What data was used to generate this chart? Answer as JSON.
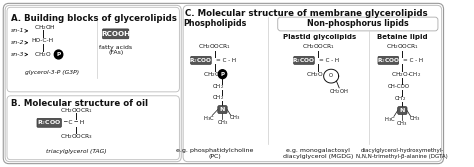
{
  "bg_color": "#ffffff",
  "border_color": "#aaaaaa",
  "title_A": "A. Building blocks of glycerolipids",
  "title_B": "B. Molecular structure of oil",
  "title_C": "C. Molecular structure of membrane glycerolipids",
  "label_phospholipids": "Phospholipids",
  "label_non_phosphorus": "Non-phosphorus lipids",
  "label_plastid": "Plastid glycolipids",
  "label_betaine": "Betaine lipid",
  "caption_PC": "e.g. phosphatidylcholine\n(PC)",
  "caption_MGDG": "e.g. monogalactosyl\ndiacylglycerol (MGDG)",
  "caption_DGTA": "diacylglycerol-hydroxymethyl-\nN,N,N-trimethyl-β-alanine (DGTA)",
  "caption_TAG": "triacylglycerol (TAG)",
  "caption_G3P": "glycerol-3-P (G3P)",
  "caption_FA": "fatty acids\n(FAs)",
  "highlight_fill": "#555555",
  "highlight_text": "#ffffff",
  "text_color": "#111111",
  "font_size_title": 6.2,
  "font_size_label": 5.8,
  "font_size_small": 4.5,
  "font_size_caption": 4.8
}
